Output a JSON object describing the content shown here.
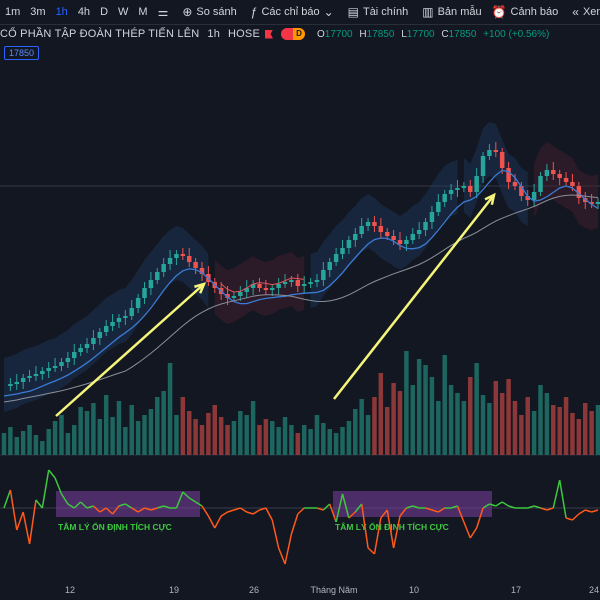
{
  "toolbar": {
    "intervals": [
      "1m",
      "3m",
      "1h",
      "4h",
      "D",
      "W",
      "M"
    ],
    "active_interval": "1h",
    "compare_label": "So sánh",
    "indicators_label": "Các chỉ báo",
    "financials_label": "Tài chính",
    "templates_label": "Bản mẫu",
    "alert_label": "Cảnh báo",
    "replay_label": "Xem lại"
  },
  "symbol": {
    "name": "CỔ PHẦN TẬP ĐOÀN THÉP TIẾN LÊN",
    "interval": "1h",
    "exchange": "HOSE",
    "badge": "D"
  },
  "ohlc": {
    "o_label": "O",
    "o": "17700",
    "h_label": "H",
    "h": "17850",
    "l_label": "L",
    "l": "17700",
    "c_label": "C",
    "c": "17850",
    "change": "+100 (+0.56%)"
  },
  "price_label": "17850",
  "annotations": {
    "zone_label_1": "TÂM LÝ ỔN ĐỊNH TÍCH CỰC",
    "zone_label_2": "TÂM LÝ ỔN ĐỊNH TÍCH CỰC"
  },
  "x_axis": [
    "12",
    "19",
    "26",
    "Tháng Năm",
    "10",
    "17",
    "24"
  ],
  "colors": {
    "up": "#26a69a",
    "down": "#ef5350",
    "arrow": "#f5f57a",
    "zone": "#7b3fa0",
    "osc_up": "#3ec83e",
    "osc_down": "#ff5a1a"
  },
  "chart_data": {
    "type": "candlestick",
    "price_series": [
      360,
      358,
      356,
      352,
      350,
      348,
      345,
      342,
      340,
      336,
      332,
      326,
      322,
      318,
      312,
      306,
      300,
      296,
      292,
      290,
      282,
      272,
      262,
      254,
      246,
      238,
      232,
      228,
      230,
      236,
      242,
      248,
      256,
      262,
      268,
      272,
      270,
      266,
      262,
      258,
      262,
      264,
      262,
      258,
      256,
      254,
      260,
      258,
      256,
      254,
      244,
      236,
      228,
      222,
      214,
      208,
      200,
      196,
      200,
      206,
      210,
      214,
      218,
      214,
      208,
      204,
      196,
      186,
      176,
      168,
      164,
      162,
      160,
      166,
      150,
      130,
      124,
      126,
      142,
      156,
      160,
      170,
      174,
      166,
      150,
      144,
      148,
      152,
      156,
      160,
      172,
      176,
      178,
      176
    ],
    "volume_series": [
      22,
      28,
      18,
      24,
      30,
      20,
      14,
      26,
      34,
      40,
      22,
      30,
      48,
      44,
      52,
      36,
      60,
      38,
      54,
      28,
      50,
      34,
      40,
      46,
      58,
      64,
      92,
      40,
      58,
      44,
      36,
      30,
      42,
      50,
      38,
      30,
      34,
      44,
      40,
      54,
      30,
      36,
      34,
      28,
      38,
      30,
      22,
      30,
      26,
      40,
      32,
      26,
      22,
      28,
      34,
      46,
      56,
      40,
      58,
      82,
      48,
      72,
      64,
      104,
      70,
      96,
      90,
      78,
      54,
      100,
      70,
      62,
      54,
      78,
      92,
      60,
      52,
      74,
      62,
      76,
      54,
      40,
      58,
      44,
      70,
      62,
      50,
      48,
      58,
      42,
      36,
      52,
      44,
      50
    ],
    "oscillator": [
      0,
      18,
      -22,
      -4,
      -36,
      8,
      0,
      38,
      30,
      14,
      4,
      0,
      6,
      0,
      2,
      -4,
      0,
      -6,
      2,
      4,
      0,
      -4,
      0,
      -2,
      0,
      2,
      0,
      0,
      16,
      10,
      6,
      2,
      -8,
      -20,
      -8,
      -4,
      -2,
      0,
      -4,
      -6,
      -2,
      0,
      -12,
      -40,
      -56,
      -26,
      -6,
      0,
      0,
      0,
      -2,
      4,
      -14,
      14,
      -10,
      -4,
      4,
      -40,
      -46,
      -10,
      -2,
      -40,
      -8,
      0,
      2,
      0,
      0,
      -2,
      -4,
      0,
      0,
      2,
      -14,
      -30,
      -20,
      0,
      4,
      2,
      6,
      2,
      0,
      0,
      0,
      2,
      0,
      -2,
      0,
      28,
      -10,
      -12,
      -6,
      -2,
      -4,
      -2
    ]
  }
}
